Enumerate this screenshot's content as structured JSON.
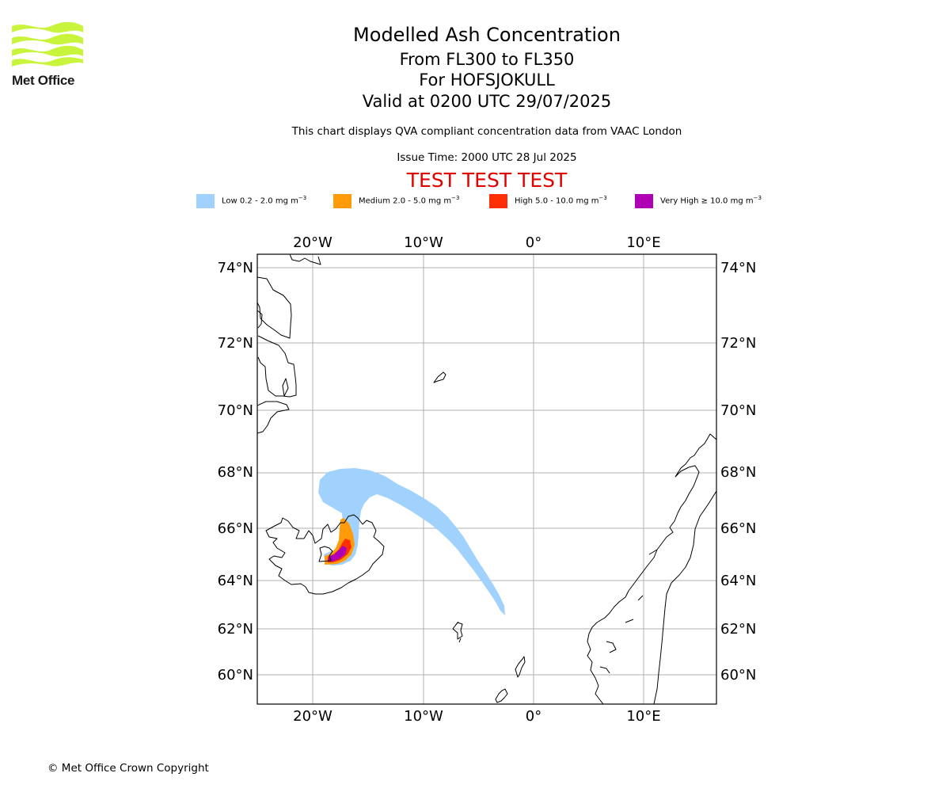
{
  "brand": {
    "logo_text": "Met Office",
    "logo_color": "#c8f53c"
  },
  "header": {
    "title": "Modelled Ash Concentration",
    "flight_levels": "From FL300 to FL350",
    "volcano": "For HOFSJOKULL",
    "valid_time": "Valid at 0200 UTC 29/07/2025",
    "subtitle": "This chart displays QVA compliant concentration data from VAAC London",
    "issue_time": "Issue Time: 2000 UTC 28 Jul 2025",
    "test_banner": "TEST TEST TEST",
    "test_banner_color": "#e00000"
  },
  "legend": [
    {
      "label": "Low 0.2 - 2.0 mg m",
      "unit_exp": "−3",
      "color": "#a0d2fd"
    },
    {
      "label": "Medium 2.0 - 5.0 mg m",
      "unit_exp": "−3",
      "color": "#ff9b08"
    },
    {
      "label": "High 5.0 - 10.0 mg m",
      "unit_exp": "−3",
      "color": "#ff2e04"
    },
    {
      "label": "Very High ≥ 10.0 mg m",
      "unit_exp": "−3",
      "color": "#b000b5"
    }
  ],
  "map": {
    "lon_ticks": [
      "20°W",
      "10°W",
      "0°",
      "10°E"
    ],
    "lat_ticks": [
      "74°N",
      "72°N",
      "70°N",
      "68°N",
      "66°N",
      "64°N",
      "62°N",
      "60°N"
    ],
    "gridlines": true,
    "coastline_color": "#000000",
    "grid_color": "#b0b0b0",
    "regions_shown": [
      "Iceland",
      "East Greenland",
      "Jan Mayen",
      "Faroe Islands",
      "Shetland",
      "Orkney",
      "Norway"
    ],
    "ash_plume_levels": [
      "Low",
      "Medium",
      "High",
      "Very High"
    ]
  },
  "footer": {
    "copyright": "© Met Office Crown Copyright"
  }
}
